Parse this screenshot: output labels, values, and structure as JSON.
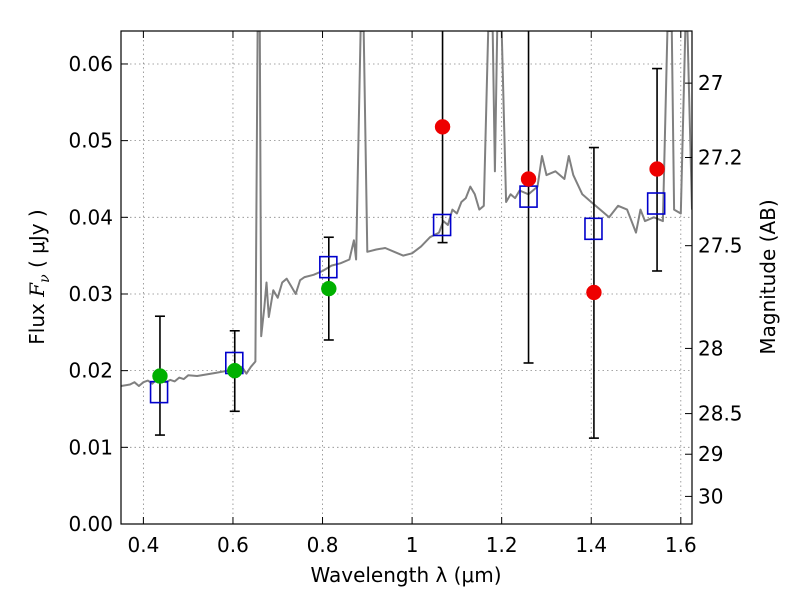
{
  "chart_data": {
    "type": "scatter",
    "xlabel": "Wavelength  λ (μm)",
    "ylabel": "Flux  F_ν  ( μJy )",
    "ylabel_parts": {
      "prefix": "Flux  ",
      "symbol_F": "F",
      "symbol_nu": "ν",
      "suffix": "  ( μJy )"
    },
    "y2label": "Magnitude (AB)",
    "xlim": [
      0.35,
      1.625
    ],
    "ylim": [
      0.0,
      0.0643
    ],
    "grid": true,
    "xticks": [
      0.4,
      0.6,
      0.8,
      1.0,
      1.2,
      1.4,
      1.6
    ],
    "xtick_labels": [
      "0.4",
      "0.6",
      "0.8",
      "1",
      "1.2",
      "1.4",
      "1.6"
    ],
    "yticks": [
      0.0,
      0.01,
      0.02,
      0.03,
      0.04,
      0.05,
      0.06
    ],
    "ytick_labels": [
      "0.00",
      "0.01",
      "0.02",
      "0.03",
      "0.04",
      "0.05",
      "0.06"
    ],
    "y2ticks": [
      {
        "label": "27",
        "flux": 0.0575
      },
      {
        "label": "27.2",
        "flux": 0.0478
      },
      {
        "label": "27.5",
        "flux": 0.0363
      },
      {
        "label": "28",
        "flux": 0.0229
      },
      {
        "label": "28.5",
        "flux": 0.0144
      },
      {
        "label": "29",
        "flux": 0.0091
      },
      {
        "label": "30",
        "flux": 0.0036
      }
    ],
    "colors": {
      "spectrum": "#808080",
      "model_points": "#0000cc",
      "green_points": "#00b000",
      "red_points": "#ee0000",
      "errorbars": "#000000",
      "grid": "#888888"
    },
    "series": [
      {
        "style": "line",
        "color": "#808080",
        "points": [
          [
            0.35,
            0.018
          ],
          [
            0.37,
            0.0182
          ],
          [
            0.38,
            0.0185
          ],
          [
            0.39,
            0.018
          ],
          [
            0.4,
            0.0185
          ],
          [
            0.41,
            0.0187
          ],
          [
            0.42,
            0.0183
          ],
          [
            0.43,
            0.0189
          ],
          [
            0.44,
            0.0186
          ],
          [
            0.45,
            0.0185
          ],
          [
            0.46,
            0.0188
          ],
          [
            0.47,
            0.0186
          ],
          [
            0.48,
            0.0191
          ],
          [
            0.49,
            0.0189
          ],
          [
            0.5,
            0.0194
          ],
          [
            0.52,
            0.0193
          ],
          [
            0.54,
            0.0195
          ],
          [
            0.56,
            0.0197
          ],
          [
            0.58,
            0.0199
          ],
          [
            0.6,
            0.0201
          ],
          [
            0.62,
            0.0205
          ],
          [
            0.63,
            0.0196
          ],
          [
            0.64,
            0.0205
          ],
          [
            0.65,
            0.0212
          ],
          [
            0.655,
            0.0643
          ],
          [
            0.66,
            0.0643
          ],
          [
            0.663,
            0.0245
          ],
          [
            0.67,
            0.0282
          ],
          [
            0.675,
            0.0315
          ],
          [
            0.68,
            0.027
          ],
          [
            0.69,
            0.0305
          ],
          [
            0.7,
            0.0295
          ],
          [
            0.71,
            0.0315
          ],
          [
            0.72,
            0.032
          ],
          [
            0.73,
            0.031
          ],
          [
            0.74,
            0.03
          ],
          [
            0.75,
            0.0318
          ],
          [
            0.76,
            0.0322
          ],
          [
            0.78,
            0.0325
          ],
          [
            0.8,
            0.033
          ],
          [
            0.82,
            0.0337
          ],
          [
            0.84,
            0.034
          ],
          [
            0.86,
            0.0345
          ],
          [
            0.87,
            0.037
          ],
          [
            0.875,
            0.0345
          ],
          [
            0.885,
            0.0643
          ],
          [
            0.892,
            0.0643
          ],
          [
            0.9,
            0.0355
          ],
          [
            0.92,
            0.0358
          ],
          [
            0.94,
            0.036
          ],
          [
            0.96,
            0.0355
          ],
          [
            0.98,
            0.035
          ],
          [
            1.0,
            0.0353
          ],
          [
            1.02,
            0.0362
          ],
          [
            1.04,
            0.0374
          ],
          [
            1.06,
            0.038
          ],
          [
            1.07,
            0.0395
          ],
          [
            1.08,
            0.039
          ],
          [
            1.09,
            0.041
          ],
          [
            1.1,
            0.0405
          ],
          [
            1.11,
            0.042
          ],
          [
            1.12,
            0.0425
          ],
          [
            1.13,
            0.044
          ],
          [
            1.14,
            0.043
          ],
          [
            1.15,
            0.041
          ],
          [
            1.16,
            0.0415
          ],
          [
            1.17,
            0.0643
          ],
          [
            1.18,
            0.0643
          ],
          [
            1.185,
            0.046
          ],
          [
            1.19,
            0.0643
          ],
          [
            1.2,
            0.0643
          ],
          [
            1.21,
            0.042
          ],
          [
            1.22,
            0.043
          ],
          [
            1.23,
            0.0425
          ],
          [
            1.24,
            0.0435
          ],
          [
            1.26,
            0.043
          ],
          [
            1.28,
            0.044
          ],
          [
            1.29,
            0.048
          ],
          [
            1.3,
            0.0455
          ],
          [
            1.32,
            0.046
          ],
          [
            1.34,
            0.045
          ],
          [
            1.35,
            0.048
          ],
          [
            1.36,
            0.0455
          ],
          [
            1.38,
            0.043
          ],
          [
            1.4,
            0.042
          ],
          [
            1.42,
            0.041
          ],
          [
            1.44,
            0.04
          ],
          [
            1.46,
            0.0415
          ],
          [
            1.48,
            0.041
          ],
          [
            1.5,
            0.038
          ],
          [
            1.51,
            0.041
          ],
          [
            1.52,
            0.0395
          ],
          [
            1.54,
            0.04
          ],
          [
            1.56,
            0.0395
          ],
          [
            1.57,
            0.0643
          ],
          [
            1.58,
            0.0643
          ],
          [
            1.585,
            0.041
          ],
          [
            1.6,
            0.0405
          ],
          [
            1.61,
            0.0643
          ],
          [
            1.615,
            0.0643
          ],
          [
            1.625,
            0.041
          ]
        ]
      },
      {
        "style": "open-square",
        "color": "#0000cc",
        "x": [
          0.435,
          0.603,
          0.813,
          1.067,
          1.26,
          1.405,
          1.545
        ],
        "y": [
          0.0172,
          0.021,
          0.0335,
          0.039,
          0.0427,
          0.0385,
          0.0418
        ]
      },
      {
        "style": "filled-circle",
        "color": "#00b000",
        "x": [
          0.437,
          0.604,
          0.814
        ],
        "y": [
          0.0193,
          0.02,
          0.0307
        ]
      },
      {
        "style": "filled-circle",
        "color": "#ee0000",
        "x": [
          1.068,
          1.26,
          1.406,
          1.547
        ],
        "y": [
          0.0518,
          0.045,
          0.0302,
          0.0463
        ]
      },
      {
        "style": "errorbar",
        "color": "#000000",
        "x": [
          0.437,
          0.604,
          0.814,
          1.068,
          1.26,
          1.406,
          1.547
        ],
        "ylow": [
          0.0116,
          0.0147,
          0.024,
          0.0367,
          0.021,
          0.0112,
          0.033
        ],
        "yhigh": [
          0.0271,
          0.0252,
          0.0374,
          0.0643,
          0.0643,
          0.0491,
          0.0594
        ]
      }
    ]
  }
}
